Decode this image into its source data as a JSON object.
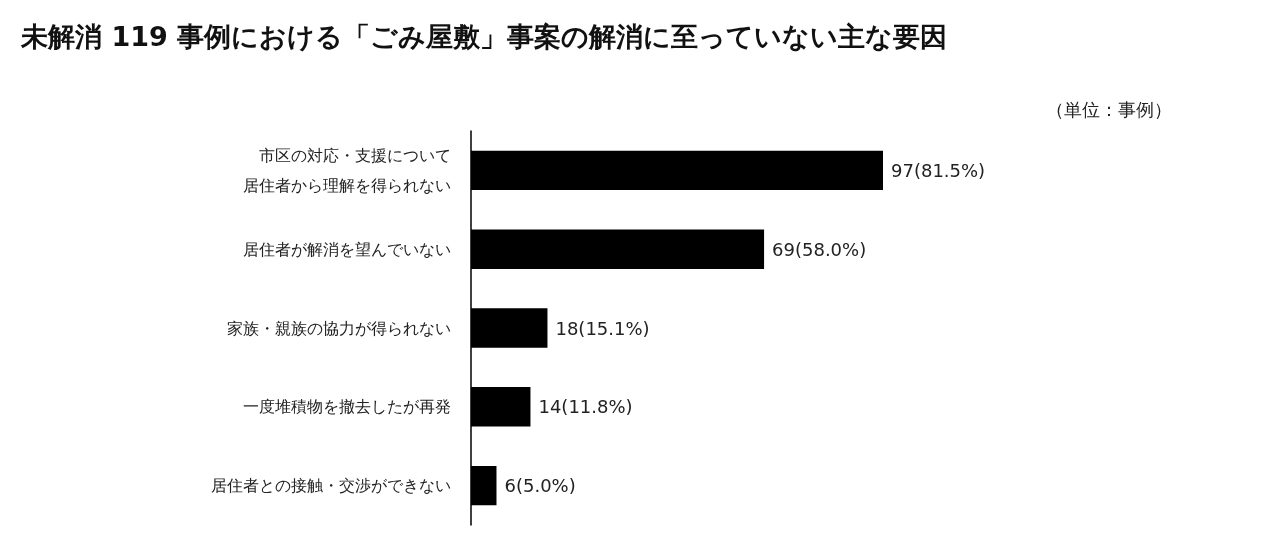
{
  "chart_data": {
    "type": "bar",
    "orientation": "horizontal",
    "title": "未解消 119 事例における「ごみ屋敷」事案の解消に至っていない主な要因",
    "annotations": [
      "（単位：事例）"
    ],
    "categories": [
      "市区の対応・支援について居住者から理解を得られない",
      "居住者が解消を望んでいない",
      "家族・親族の協力が得られない",
      "一度堆積物を撤去したが再発",
      "居住者との接触・交渉ができない"
    ],
    "values": [
      97,
      69,
      18,
      14,
      6
    ],
    "value_labels": [
      "97(81.5%)",
      "69(58.0%)",
      "18(15.1%)",
      "14(11.8%)",
      "6(5.0%)"
    ],
    "color": "#000000"
  }
}
